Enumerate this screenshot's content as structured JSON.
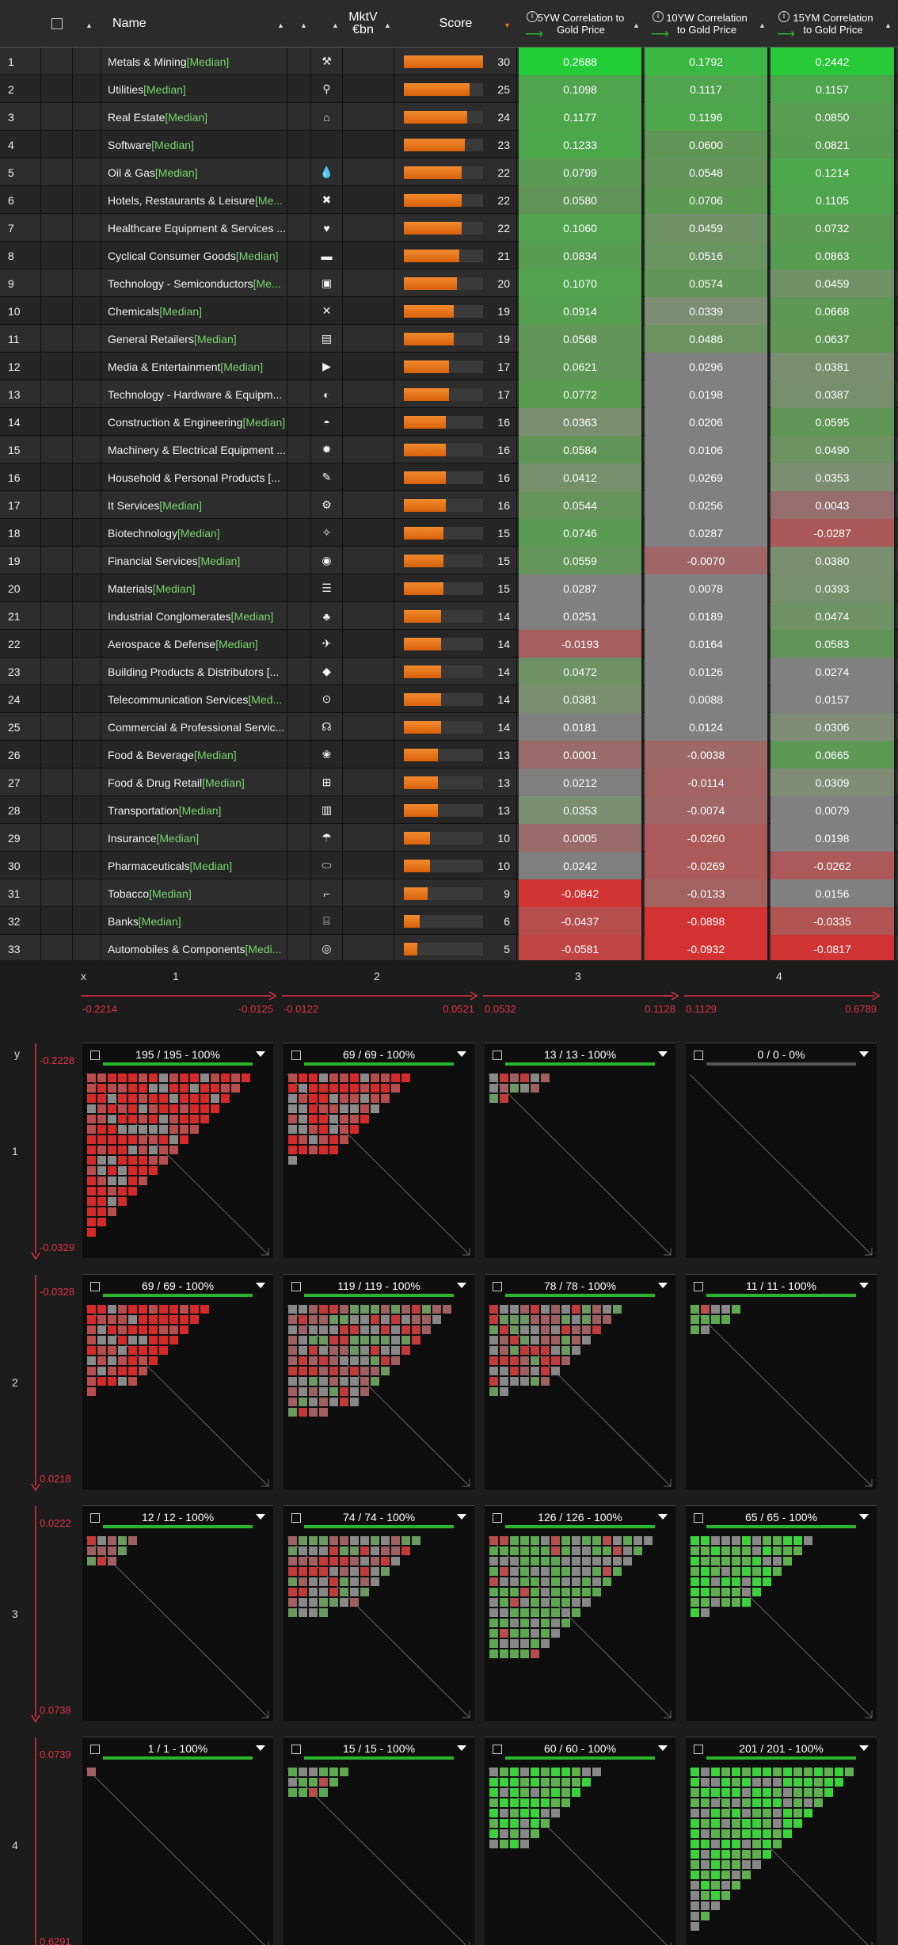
{
  "header": {
    "name": "Name",
    "mktv": "MktV €bn",
    "score": "Score",
    "col1": "5YW Correlation to Gold Price",
    "col2": "10YW Correlation to Gold Price",
    "col3": "15YM Correlation to Gold Price"
  },
  "median_tag": "[Median]",
  "rows": [
    {
      "idx": "1",
      "name": "Metals & Mining ",
      "med": "[Median]",
      "icon": "pickaxe-icon",
      "score": 30,
      "v": [
        "0.2688",
        "0.1792",
        "0.2442"
      ]
    },
    {
      "idx": "2",
      "name": "Utilities ",
      "med": "[Median]",
      "icon": "faucet-icon",
      "score": 25,
      "v": [
        "0.1098",
        "0.1117",
        "0.1157"
      ]
    },
    {
      "idx": "3",
      "name": "Real Estate ",
      "med": "[Median]",
      "icon": "house-icon",
      "score": 24,
      "v": [
        "0.1177",
        "0.1196",
        "0.0850"
      ]
    },
    {
      "idx": "4",
      "name": "Software ",
      "med": "[Median]",
      "icon": "code-icon",
      "score": 23,
      "v": [
        "0.1233",
        "0.0600",
        "0.0821"
      ]
    },
    {
      "idx": "5",
      "name": "Oil & Gas ",
      "med": "[Median]",
      "icon": "drop-icon",
      "score": 22,
      "v": [
        "0.0799",
        "0.0548",
        "0.1214"
      ]
    },
    {
      "idx": "6",
      "name": "Hotels, Restaurants & Leisure ",
      "med": "[Me...",
      "icon": "cutlery-icon",
      "score": 22,
      "v": [
        "0.0580",
        "0.0706",
        "0.1105"
      ]
    },
    {
      "idx": "7",
      "name": "Healthcare Equipment & Services ...",
      "med": "",
      "icon": "heart-icon",
      "score": 22,
      "v": [
        "0.1060",
        "0.0459",
        "0.0732"
      ]
    },
    {
      "idx": "8",
      "name": "Cyclical Consumer Goods ",
      "med": "[Median]",
      "icon": "shoe-icon",
      "score": 21,
      "v": [
        "0.0834",
        "0.0516",
        "0.0863"
      ]
    },
    {
      "idx": "9",
      "name": "Technology - Semiconductors ",
      "med": "[Me...",
      "icon": "chip-icon",
      "score": 20,
      "v": [
        "0.1070",
        "0.0574",
        "0.0459"
      ]
    },
    {
      "idx": "10",
      "name": "Chemicals ",
      "med": "[Median]",
      "icon": "molecule-icon",
      "score": 19,
      "v": [
        "0.0914",
        "0.0339",
        "0.0668"
      ]
    },
    {
      "idx": "11",
      "name": "General Retailers ",
      "med": "[Median]",
      "icon": "bag-icon",
      "score": 19,
      "v": [
        "0.0568",
        "0.0486",
        "0.0637"
      ]
    },
    {
      "idx": "12",
      "name": "Media & Entertainment ",
      "med": "[Median]",
      "icon": "play-icon",
      "score": 17,
      "v": [
        "0.0621",
        "0.0296",
        "0.0381"
      ]
    },
    {
      "idx": "13",
      "name": "Technology - Hardware & Equipm...",
      "med": "",
      "icon": "mouse-icon",
      "score": 17,
      "v": [
        "0.0772",
        "0.0198",
        "0.0387"
      ]
    },
    {
      "idx": "14",
      "name": "Construction & Engineering ",
      "med": "[Median]",
      "icon": "helmet-icon",
      "score": 16,
      "v": [
        "0.0363",
        "0.0206",
        "0.0595"
      ]
    },
    {
      "idx": "15",
      "name": "Machinery & Electrical Equipment ...",
      "med": "",
      "icon": "gear-icon",
      "score": 16,
      "v": [
        "0.0584",
        "0.0106",
        "0.0490"
      ]
    },
    {
      "idx": "16",
      "name": "Household & Personal Products [...",
      "med": "",
      "icon": "brush-icon",
      "score": 16,
      "v": [
        "0.0412",
        "0.0269",
        "0.0353"
      ]
    },
    {
      "idx": "17",
      "name": "It Services ",
      "med": "[Median]",
      "icon": "person-gear-icon",
      "score": 16,
      "v": [
        "0.0544",
        "0.0256",
        "0.0043"
      ]
    },
    {
      "idx": "18",
      "name": "Biotechnology ",
      "med": "[Median]",
      "icon": "dna-icon",
      "score": 15,
      "v": [
        "0.0746",
        "0.0287",
        "-0.0287"
      ]
    },
    {
      "idx": "19",
      "name": "Financial Services ",
      "med": "[Median]",
      "icon": "coins-icon",
      "score": 15,
      "v": [
        "0.0559",
        "-0.0070",
        "0.0380"
      ]
    },
    {
      "idx": "20",
      "name": "Materials ",
      "med": "[Median]",
      "icon": "stack-icon",
      "score": 15,
      "v": [
        "0.0287",
        "0.0078",
        "0.0393"
      ]
    },
    {
      "idx": "21",
      "name": "Industrial Conglomerates ",
      "med": "[Median]",
      "icon": "hierarchy-icon",
      "score": 14,
      "v": [
        "0.0251",
        "0.0189",
        "0.0474"
      ]
    },
    {
      "idx": "22",
      "name": "Aerospace & Defense ",
      "med": "[Median]",
      "icon": "plane-icon",
      "score": 14,
      "v": [
        "-0.0193",
        "0.0164",
        "0.0583"
      ]
    },
    {
      "idx": "23",
      "name": "Building Products & Distributors [...",
      "med": "",
      "icon": "box-icon",
      "score": 14,
      "v": [
        "0.0472",
        "0.0126",
        "0.0274"
      ]
    },
    {
      "idx": "24",
      "name": "Telecommunication Services ",
      "med": "[Med...",
      "icon": "antenna-icon",
      "score": 14,
      "v": [
        "0.0381",
        "0.0088",
        "0.0157"
      ]
    },
    {
      "idx": "25",
      "name": "Commercial & Professional Servic...",
      "med": "",
      "icon": "headset-icon",
      "score": 14,
      "v": [
        "0.0181",
        "0.0124",
        "0.0306"
      ]
    },
    {
      "idx": "26",
      "name": "Food & Beverage ",
      "med": "[Median]",
      "icon": "grapes-icon",
      "score": 13,
      "v": [
        "0.0001",
        "-0.0038",
        "0.0665"
      ]
    },
    {
      "idx": "27",
      "name": "Food & Drug Retail ",
      "med": "[Median]",
      "icon": "cart-icon",
      "score": 13,
      "v": [
        "0.0212",
        "-0.0114",
        "0.0309"
      ]
    },
    {
      "idx": "28",
      "name": "Transportation ",
      "med": "[Median]",
      "icon": "train-icon",
      "score": 13,
      "v": [
        "0.0353",
        "-0.0074",
        "0.0079"
      ]
    },
    {
      "idx": "29",
      "name": "Insurance ",
      "med": "[Median]",
      "icon": "umbrella-icon",
      "score": 10,
      "v": [
        "0.0005",
        "-0.0260",
        "0.0198"
      ]
    },
    {
      "idx": "30",
      "name": "Pharmaceuticals ",
      "med": "[Median]",
      "icon": "pill-icon",
      "score": 10,
      "v": [
        "0.0242",
        "-0.0269",
        "-0.0262"
      ]
    },
    {
      "idx": "31",
      "name": "Tobacco ",
      "med": "[Median]",
      "icon": "pipe-icon",
      "score": 9,
      "v": [
        "-0.0842",
        "-0.0133",
        "0.0156"
      ]
    },
    {
      "idx": "32",
      "name": "Banks ",
      "med": "[Median]",
      "icon": "bank-icon",
      "score": 6,
      "v": [
        "-0.0437",
        "-0.0898",
        "-0.0335"
      ]
    },
    {
      "idx": "33",
      "name": "Automobiles & Components ",
      "med": "[Medi...",
      "icon": "tire-icon",
      "score": 5,
      "v": [
        "-0.0581",
        "-0.0932",
        "-0.0817"
      ]
    }
  ],
  "grid": {
    "x_label": "x",
    "y_label": "y",
    "col_labels": [
      "1",
      "2",
      "3",
      "4"
    ],
    "row_labels": [
      "1",
      "2",
      "3",
      "4"
    ],
    "x_ranges": [
      [
        "-0.2214",
        "-0.0125"
      ],
      [
        "-0.0122",
        "0.0521"
      ],
      [
        "0.0532",
        "0.1128"
      ],
      [
        "0.1129",
        "0.6789"
      ]
    ],
    "y_ranges": [
      [
        "-0.2228",
        "-0.0329"
      ],
      [
        "-0.0328",
        "0.0218"
      ],
      [
        "0.0222",
        "0.0738"
      ],
      [
        "0.0739",
        "0.6291"
      ]
    ],
    "panels": [
      [
        {
          "title": "195 / 195 - 100%",
          "n": 195,
          "pct": 1
        },
        {
          "title": "69 / 69 - 100%",
          "n": 69,
          "pct": 1
        },
        {
          "title": "13 / 13 - 100%",
          "n": 13,
          "pct": 1
        },
        {
          "title": "0 / 0 - 0%",
          "n": 0,
          "pct": 0
        }
      ],
      [
        {
          "title": "69 / 69 - 100%",
          "n": 69,
          "pct": 1
        },
        {
          "title": "119 / 119 - 100%",
          "n": 119,
          "pct": 1
        },
        {
          "title": "78 / 78 - 100%",
          "n": 78,
          "pct": 1
        },
        {
          "title": "11 / 11 - 100%",
          "n": 11,
          "pct": 1
        }
      ],
      [
        {
          "title": "12 / 12 - 100%",
          "n": 12,
          "pct": 1
        },
        {
          "title": "74 / 74 - 100%",
          "n": 74,
          "pct": 1
        },
        {
          "title": "126 / 126 - 100%",
          "n": 126,
          "pct": 1
        },
        {
          "title": "65 / 65 - 100%",
          "n": 65,
          "pct": 1
        }
      ],
      [
        {
          "title": "1 / 1 - 100%",
          "n": 1,
          "pct": 1
        },
        {
          "title": "15 / 15 - 100%",
          "n": 15,
          "pct": 1
        },
        {
          "title": "60 / 60 - 100%",
          "n": 60,
          "pct": 1
        },
        {
          "title": "201 / 201 - 100%",
          "n": 201,
          "pct": 1
        }
      ]
    ]
  },
  "colors": {
    "orange": "#e8801c",
    "green": "#2cb52c",
    "red_axis": "#e0324a",
    "median": "#7ad66f"
  }
}
